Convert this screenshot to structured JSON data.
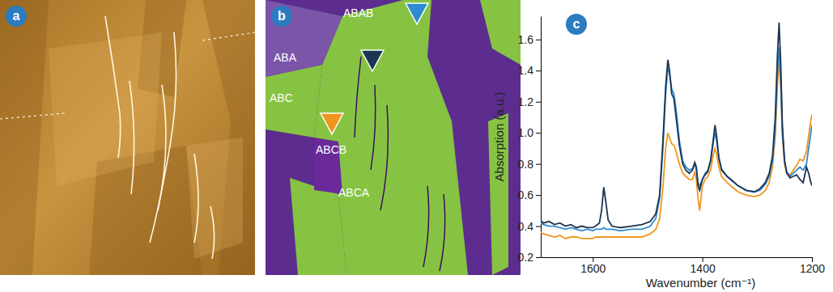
{
  "panels": [
    {
      "label": "a"
    },
    {
      "label": "b",
      "annotations": [
        "ABAB",
        "ABA",
        "ABC",
        "ABCB",
        "ABCA"
      ]
    }
  ],
  "chart_data": {
    "label": "c",
    "type": "line",
    "xlabel": "Wavenumber (cm⁻¹)",
    "ylabel": "Absorption (a.u.)",
    "xlim": [
      1695,
      1200
    ],
    "ylim": [
      0.2,
      1.75
    ],
    "xticks": [
      1600,
      1400,
      1200
    ],
    "yticks": [
      0.2,
      0.4,
      0.6,
      0.8,
      {
        "value": 1,
        "label": "1.0"
      },
      1.2,
      1.4,
      1.6
    ],
    "x": [
      1700,
      1690,
      1680,
      1670,
      1660,
      1650,
      1640,
      1630,
      1620,
      1610,
      1600,
      1595,
      1588,
      1584,
      1580,
      1576,
      1572,
      1565,
      1550,
      1530,
      1510,
      1495,
      1485,
      1478,
      1472,
      1467,
      1463,
      1460,
      1456,
      1452,
      1448,
      1442,
      1436,
      1430,
      1424,
      1418,
      1414,
      1411,
      1408,
      1405,
      1400,
      1395,
      1390,
      1385,
      1380,
      1377,
      1374,
      1370,
      1365,
      1355,
      1345,
      1335,
      1320,
      1305,
      1295,
      1285,
      1278,
      1272,
      1267,
      1263,
      1260,
      1257,
      1254,
      1250,
      1246,
      1240,
      1234,
      1228,
      1222,
      1216,
      1210,
      1206,
      1202,
      1200
    ],
    "series": [
      {
        "color": "#1b3552",
        "values": [
          0.45,
          0.42,
          0.43,
          0.41,
          0.42,
          0.4,
          0.41,
          0.39,
          0.4,
          0.39,
          0.39,
          0.4,
          0.42,
          0.5,
          0.65,
          0.55,
          0.44,
          0.4,
          0.39,
          0.4,
          0.41,
          0.43,
          0.48,
          0.6,
          0.95,
          1.3,
          1.47,
          1.4,
          1.25,
          1.22,
          1.1,
          0.92,
          0.8,
          0.76,
          0.74,
          0.76,
          0.81,
          0.78,
          0.66,
          0.63,
          0.7,
          0.73,
          0.75,
          0.82,
          0.96,
          1.05,
          0.98,
          0.84,
          0.76,
          0.72,
          0.69,
          0.66,
          0.63,
          0.62,
          0.64,
          0.68,
          0.74,
          0.85,
          1.1,
          1.5,
          1.71,
          1.45,
          1.05,
          0.82,
          0.74,
          0.71,
          0.72,
          0.73,
          0.7,
          0.68,
          0.78,
          0.74,
          0.68,
          0.66
        ]
      },
      {
        "color": "#2e8bd0",
        "values": [
          0.43,
          0.41,
          0.4,
          0.4,
          0.39,
          0.38,
          0.39,
          0.38,
          0.37,
          0.38,
          0.37,
          0.38,
          0.38,
          0.38,
          0.39,
          0.38,
          0.38,
          0.38,
          0.37,
          0.38,
          0.38,
          0.4,
          0.45,
          0.58,
          0.9,
          1.25,
          1.42,
          1.38,
          1.28,
          1.25,
          1.15,
          0.95,
          0.82,
          0.78,
          0.76,
          0.77,
          0.8,
          0.76,
          0.68,
          0.66,
          0.7,
          0.74,
          0.76,
          0.82,
          0.94,
          1.0,
          0.95,
          0.84,
          0.77,
          0.72,
          0.69,
          0.66,
          0.63,
          0.62,
          0.63,
          0.67,
          0.72,
          0.82,
          1.02,
          1.38,
          1.55,
          1.35,
          1.0,
          0.82,
          0.75,
          0.72,
          0.74,
          0.76,
          0.78,
          0.76,
          0.8,
          0.9,
          1.0,
          1.05
        ]
      },
      {
        "color": "#f0951e",
        "values": [
          0.37,
          0.35,
          0.34,
          0.33,
          0.34,
          0.32,
          0.33,
          0.33,
          0.32,
          0.32,
          0.32,
          0.33,
          0.33,
          0.33,
          0.33,
          0.33,
          0.33,
          0.33,
          0.33,
          0.33,
          0.33,
          0.35,
          0.38,
          0.45,
          0.65,
          0.9,
          1.0,
          0.97,
          0.93,
          0.92,
          0.88,
          0.8,
          0.74,
          0.72,
          0.7,
          0.7,
          0.75,
          0.7,
          0.58,
          0.5,
          0.66,
          0.7,
          0.72,
          0.76,
          0.86,
          0.9,
          0.86,
          0.78,
          0.72,
          0.68,
          0.65,
          0.62,
          0.6,
          0.59,
          0.6,
          0.63,
          0.68,
          0.78,
          0.98,
          1.3,
          1.48,
          1.28,
          0.98,
          0.8,
          0.74,
          0.73,
          0.76,
          0.79,
          0.83,
          0.82,
          0.88,
          0.98,
          1.08,
          1.12
        ]
      }
    ]
  }
}
